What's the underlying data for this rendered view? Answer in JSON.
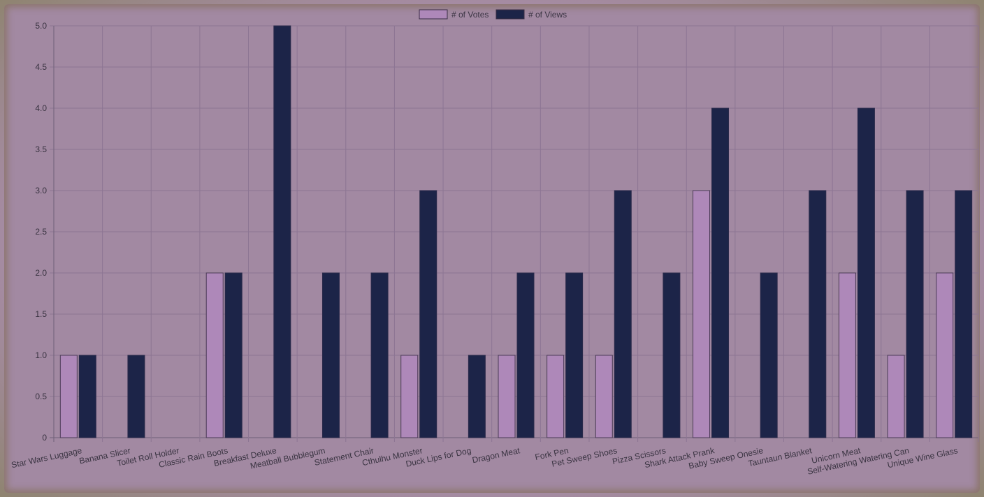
{
  "chart_data": {
    "type": "bar",
    "categories": [
      "Star Wars Luggage",
      "Banana Slicer",
      "Toilet Roll Holder",
      "Classic Rain Boots",
      "Breakfast Deluxe",
      "Meatball Bubblegum",
      "Statement Chair",
      "Cthulhu Monster",
      "Duck Lips for Dog",
      "Dragon Meat",
      "Fork Pen",
      "Pet Sweep Shoes",
      "Pizza Scissors",
      "Shark Attack Prank",
      "Baby Sweep Onesie",
      "Tauntaun Blanket",
      "Unicorn Meat",
      "Self-Watering Watering Can",
      "Unique Wine Glass"
    ],
    "series": [
      {
        "name": "# of Votes",
        "color": "#ae88b9",
        "values": [
          1,
          0,
          0,
          2,
          0,
          0,
          0,
          1,
          0,
          1,
          1,
          1,
          0,
          3,
          0,
          0,
          2,
          1,
          2
        ]
      },
      {
        "name": "# of Views",
        "color": "#1c2448",
        "values": [
          1,
          1,
          0,
          2,
          5,
          2,
          2,
          3,
          1,
          2,
          2,
          3,
          2,
          4,
          2,
          3,
          4,
          3,
          3
        ]
      }
    ],
    "ylim": [
      0,
      5
    ],
    "yticks": [
      "0",
      "0.5",
      "1.0",
      "1.5",
      "2.0",
      "2.5",
      "3.0",
      "3.5",
      "4.0",
      "4.5",
      "5.0"
    ],
    "grid": true,
    "legend_position": "top-center"
  }
}
